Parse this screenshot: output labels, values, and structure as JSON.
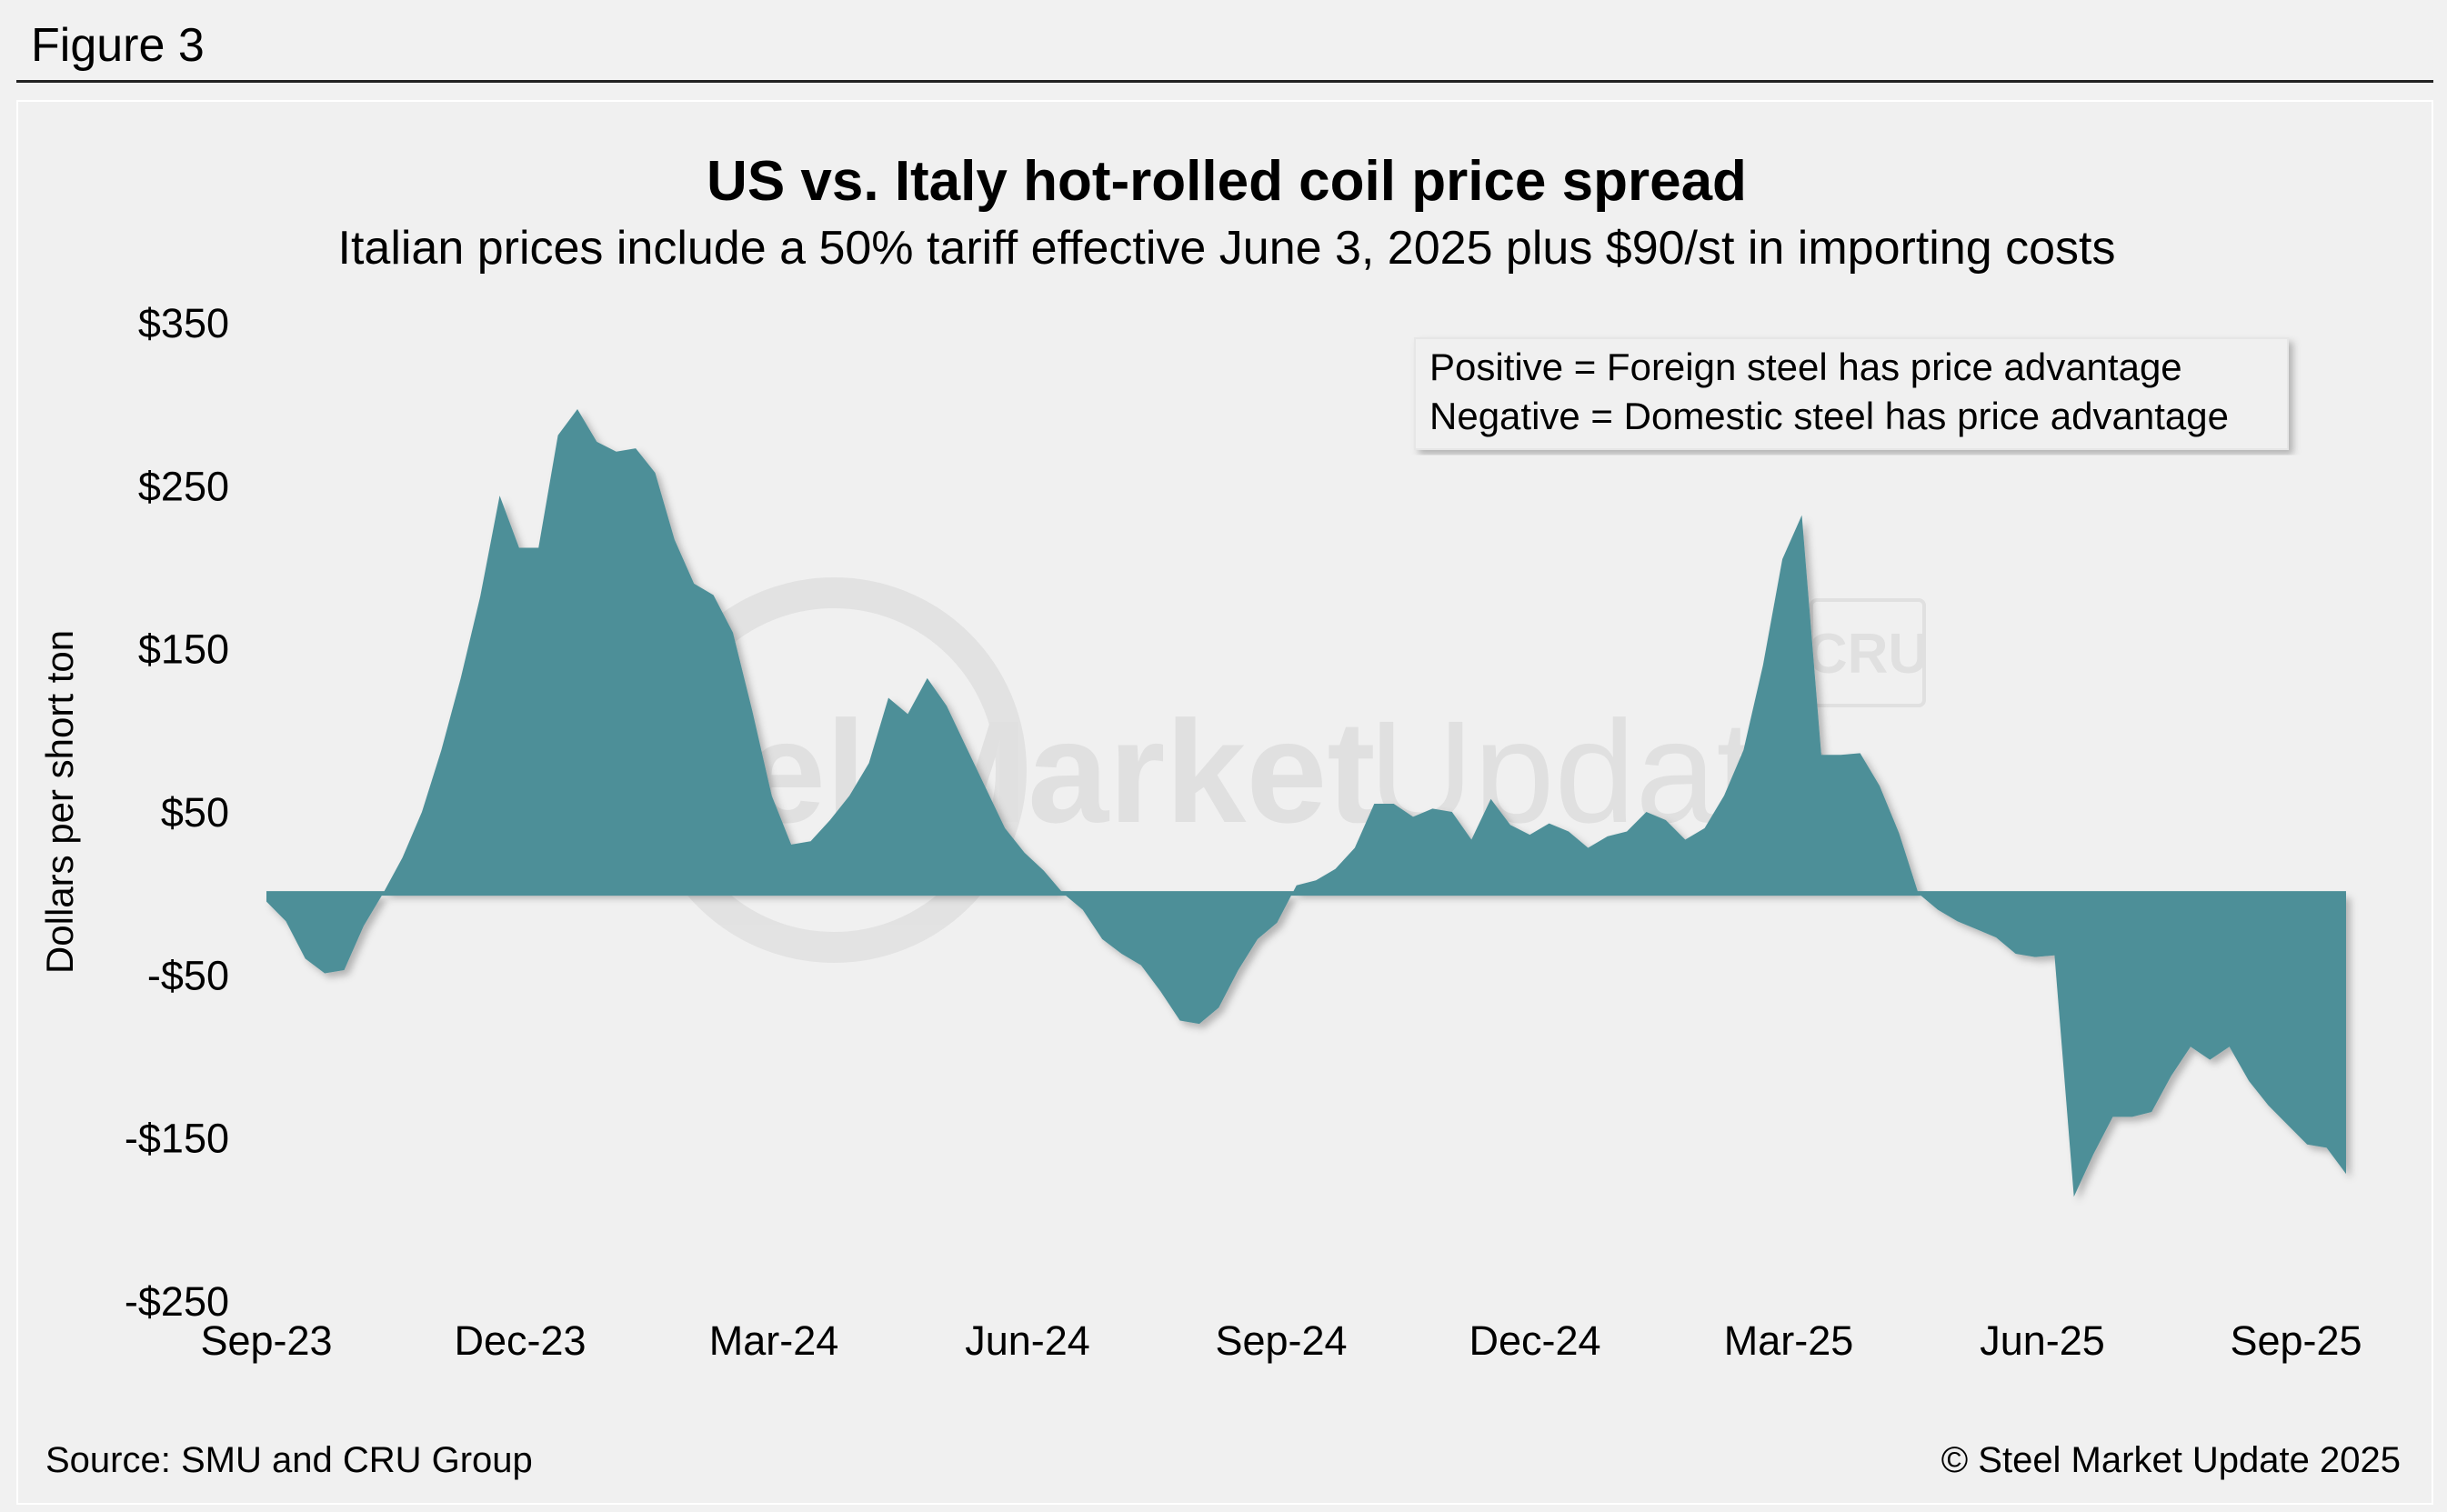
{
  "figure_label": "Figure 3",
  "source": "Source: SMU and CRU Group",
  "copyright": "© Steel Market Update 2025",
  "watermark": {
    "left": "Steel Market",
    "right": "Update",
    "badge": "CRU"
  },
  "colors": {
    "area": "#4d8f98",
    "background": "#f0f0f0",
    "baseline": "#4d8f98",
    "watermark": "#d9d9d9"
  },
  "chart_data": {
    "type": "area",
    "title": "US vs. Italy hot-rolled coil price spread",
    "subtitle": "Italian prices include a 50% tariff effective June 3, 2025 plus $90/st in importing costs",
    "ylabel": "Dollars per short ton",
    "xlabel": "",
    "ylim": [
      -250,
      350
    ],
    "yticks": [
      350,
      250,
      150,
      50,
      -50,
      -150,
      -250
    ],
    "ytick_labels": [
      "$350",
      "$250",
      "$150",
      "$50",
      "-$50",
      "-$150",
      "-$250"
    ],
    "x_ticks": [
      "Sep-23",
      "Dec-23",
      "Mar-24",
      "Jun-24",
      "Sep-24",
      "Dec-24",
      "Mar-25",
      "Jun-25",
      "Sep-25"
    ],
    "annotations": [
      "Positive = Foreign steel has price advantage",
      "Negative = Domestic steel has price advantage"
    ],
    "grid": false,
    "series": [
      {
        "points": [
          [
            "2023-09-01",
            -5
          ],
          [
            "2023-09-08",
            -17
          ],
          [
            "2023-09-15",
            -40
          ],
          [
            "2023-09-22",
            -49
          ],
          [
            "2023-09-29",
            -47
          ],
          [
            "2023-10-06",
            -20
          ],
          [
            "2023-10-13",
            0
          ],
          [
            "2023-10-20",
            22
          ],
          [
            "2023-10-27",
            50
          ],
          [
            "2023-11-03",
            88
          ],
          [
            "2023-11-10",
            132
          ],
          [
            "2023-11-17",
            182
          ],
          [
            "2023-11-24",
            244
          ],
          [
            "2023-12-01",
            212
          ],
          [
            "2023-12-08",
            212
          ],
          [
            "2023-12-15",
            281
          ],
          [
            "2023-12-22",
            297
          ],
          [
            "2023-12-29",
            277
          ],
          [
            "2024-01-05",
            271
          ],
          [
            "2024-01-12",
            273
          ],
          [
            "2024-01-19",
            258
          ],
          [
            "2024-01-26",
            217
          ],
          [
            "2024-02-02",
            190
          ],
          [
            "2024-02-09",
            183
          ],
          [
            "2024-02-16",
            160
          ],
          [
            "2024-02-23",
            112
          ],
          [
            "2024-03-01",
            60
          ],
          [
            "2024-03-08",
            30
          ],
          [
            "2024-03-15",
            32
          ],
          [
            "2024-03-22",
            45
          ],
          [
            "2024-03-29",
            60
          ],
          [
            "2024-04-05",
            80
          ],
          [
            "2024-04-12",
            120
          ],
          [
            "2024-04-19",
            110
          ],
          [
            "2024-04-26",
            132
          ],
          [
            "2024-05-03",
            115
          ],
          [
            "2024-05-10",
            90
          ],
          [
            "2024-05-17",
            65
          ],
          [
            "2024-05-24",
            40
          ],
          [
            "2024-05-31",
            25
          ],
          [
            "2024-06-07",
            14
          ],
          [
            "2024-06-14",
            0
          ],
          [
            "2024-06-21",
            -10
          ],
          [
            "2024-06-28",
            -28
          ],
          [
            "2024-07-05",
            -37
          ],
          [
            "2024-07-12",
            -44
          ],
          [
            "2024-07-19",
            -60
          ],
          [
            "2024-07-26",
            -78
          ],
          [
            "2024-08-02",
            -80
          ],
          [
            "2024-08-09",
            -70
          ],
          [
            "2024-08-16",
            -47
          ],
          [
            "2024-08-23",
            -28
          ],
          [
            "2024-08-30",
            -18
          ],
          [
            "2024-09-06",
            5
          ],
          [
            "2024-09-13",
            8
          ],
          [
            "2024-09-20",
            15
          ],
          [
            "2024-09-27",
            28
          ],
          [
            "2024-10-04",
            55
          ],
          [
            "2024-10-11",
            55
          ],
          [
            "2024-10-18",
            47
          ],
          [
            "2024-10-25",
            52
          ],
          [
            "2024-11-01",
            50
          ],
          [
            "2024-11-08",
            33
          ],
          [
            "2024-11-15",
            58
          ],
          [
            "2024-11-22",
            42
          ],
          [
            "2024-11-29",
            36
          ],
          [
            "2024-12-06",
            43
          ],
          [
            "2024-12-13",
            38
          ],
          [
            "2024-12-20",
            28
          ],
          [
            "2024-12-27",
            35
          ],
          [
            "2025-01-03",
            38
          ],
          [
            "2025-01-10",
            50
          ],
          [
            "2025-01-17",
            45
          ],
          [
            "2025-01-24",
            33
          ],
          [
            "2025-01-31",
            40
          ],
          [
            "2025-02-07",
            60
          ],
          [
            "2025-02-14",
            88
          ],
          [
            "2025-02-21",
            140
          ],
          [
            "2025-02-28",
            205
          ],
          [
            "2025-03-07",
            232
          ],
          [
            "2025-03-14",
            85
          ],
          [
            "2025-03-21",
            85
          ],
          [
            "2025-03-28",
            86
          ],
          [
            "2025-04-04",
            66
          ],
          [
            "2025-04-11",
            37
          ],
          [
            "2025-04-18",
            0
          ],
          [
            "2025-04-25",
            -10
          ],
          [
            "2025-05-02",
            -17
          ],
          [
            "2025-05-09",
            -22
          ],
          [
            "2025-05-16",
            -27
          ],
          [
            "2025-05-23",
            -37
          ],
          [
            "2025-05-30",
            -39
          ],
          [
            "2025-06-06",
            -38
          ],
          [
            "2025-06-13",
            -186
          ],
          [
            "2025-06-20",
            -160
          ],
          [
            "2025-06-27",
            -137
          ],
          [
            "2025-07-04",
            -137
          ],
          [
            "2025-07-11",
            -134
          ],
          [
            "2025-07-18",
            -112
          ],
          [
            "2025-07-25",
            -94
          ],
          [
            "2025-08-01",
            -102
          ],
          [
            "2025-08-08",
            -94
          ],
          [
            "2025-08-15",
            -115
          ],
          [
            "2025-08-22",
            -130
          ],
          [
            "2025-08-29",
            -142
          ],
          [
            "2025-09-05",
            -154
          ],
          [
            "2025-09-12",
            -156
          ],
          [
            "2025-09-19",
            -172
          ]
        ]
      }
    ]
  }
}
